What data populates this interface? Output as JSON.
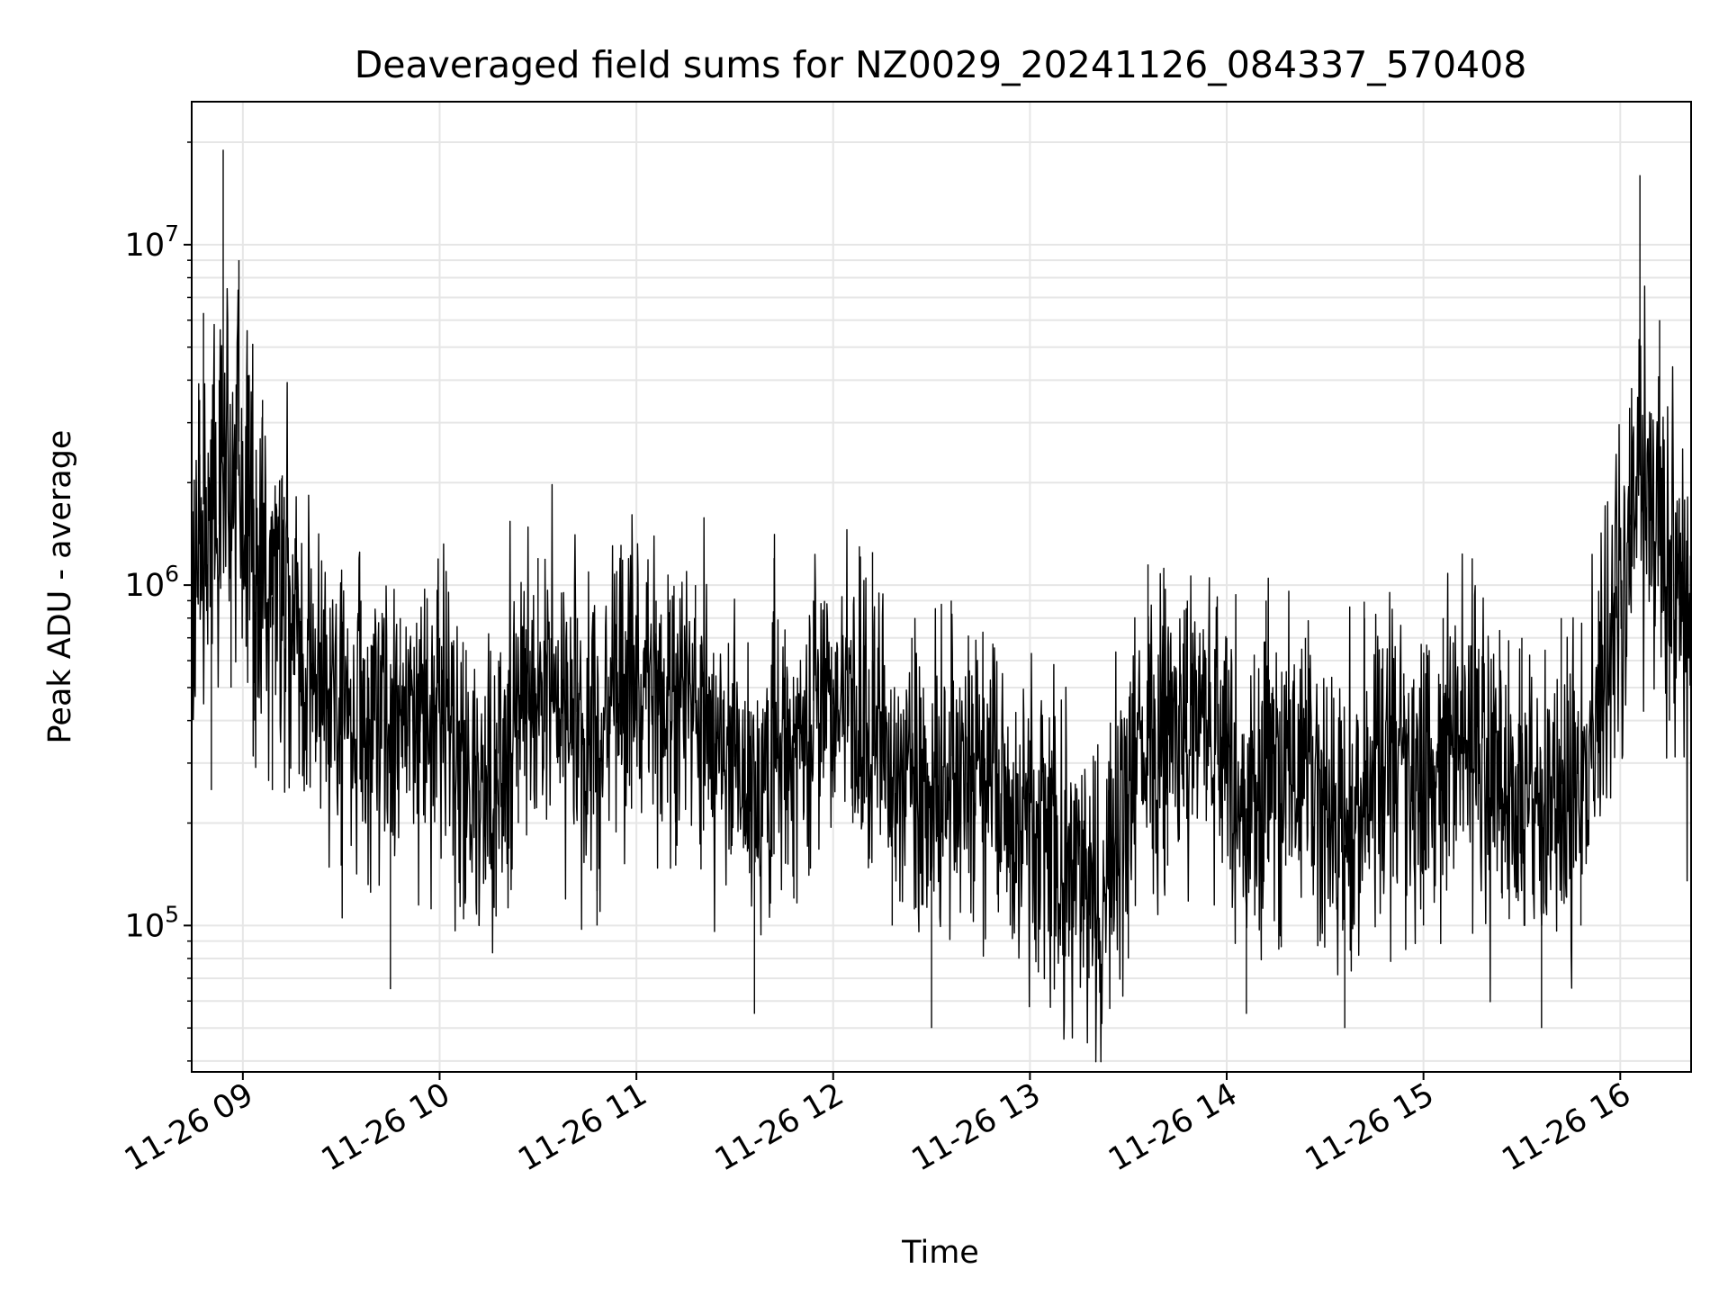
{
  "chart_data": {
    "type": "line",
    "title": "Deaveraged field sums for NZ0029_20241126_084337_570408",
    "xlabel": "Time",
    "ylabel": "Peak ADU - average",
    "yscale": "log",
    "grid": true,
    "xlim": [
      8.74,
      16.36
    ],
    "ylim_log10": [
      4.57,
      7.42
    ],
    "xticks": [
      {
        "label": "11-26 09",
        "value": 9
      },
      {
        "label": "11-26 10",
        "value": 10
      },
      {
        "label": "11-26 11",
        "value": 11
      },
      {
        "label": "11-26 12",
        "value": 12
      },
      {
        "label": "11-26 13",
        "value": 13
      },
      {
        "label": "11-26 14",
        "value": 14
      },
      {
        "label": "11-26 15",
        "value": 15
      },
      {
        "label": "11-26 16",
        "value": 16
      }
    ],
    "yticks": [
      {
        "base": "10",
        "exp": "5",
        "value": 5
      },
      {
        "base": "10",
        "exp": "6",
        "value": 6
      },
      {
        "base": "10",
        "exp": "7",
        "value": 7
      }
    ],
    "line_color": "#000000",
    "series": [
      {
        "x": [
          8.74,
          8.78,
          8.8,
          8.84,
          8.88,
          8.9,
          8.94,
          8.98,
          9.02,
          9.06,
          9.1,
          9.15,
          9.2,
          9.25,
          9.3,
          9.4,
          9.5,
          9.6,
          9.7,
          9.75,
          9.8,
          9.9,
          10.0,
          10.1,
          10.2,
          10.3,
          10.4,
          10.5,
          10.6,
          10.7,
          10.8,
          10.9,
          11.0,
          11.1,
          11.2,
          11.3,
          11.4,
          11.5,
          11.6,
          11.7,
          11.8,
          11.9,
          12.0,
          12.1,
          12.2,
          12.3,
          12.4,
          12.5,
          12.6,
          12.7,
          12.8,
          12.9,
          13.0,
          13.1,
          13.2,
          13.3,
          13.4,
          13.5,
          13.6,
          13.7,
          13.8,
          13.9,
          14.0,
          14.1,
          14.2,
          14.3,
          14.4,
          14.5,
          14.6,
          14.7,
          14.8,
          14.9,
          15.0,
          15.1,
          15.2,
          15.3,
          15.4,
          15.5,
          15.6,
          15.7,
          15.8,
          15.9,
          15.98,
          16.05,
          16.1,
          16.15,
          16.2,
          16.25,
          16.3,
          16.36
        ],
        "y": [
          600000,
          3500000,
          6300000,
          250000,
          4000000,
          19000000,
          500000,
          9000000,
          2500000,
          400000,
          3500000,
          250000,
          2100000,
          600000,
          500000,
          800000,
          150000,
          900000,
          600000,
          65000,
          800000,
          300000,
          700000,
          400000,
          100000,
          600000,
          200000,
          1200000,
          300000,
          800000,
          100000,
          1100000,
          400000,
          900000,
          150000,
          1000000,
          250000,
          500000,
          55000,
          1200000,
          120000,
          900000,
          500000,
          200000,
          1250000,
          100000,
          700000,
          50000,
          900000,
          200000,
          500000,
          100000,
          350000,
          150000,
          200000,
          70000,
          250000,
          80000,
          1150000,
          150000,
          900000,
          250000,
          700000,
          55000,
          900000,
          150000,
          700000,
          200000,
          50000,
          800000,
          200000,
          550000,
          100000,
          800000,
          250000,
          600000,
          120000,
          700000,
          50000,
          800000,
          100000,
          600000,
          800000,
          1500000,
          16000000,
          1000000,
          6000000,
          400000,
          1800000,
          300000
        ]
      }
    ]
  }
}
